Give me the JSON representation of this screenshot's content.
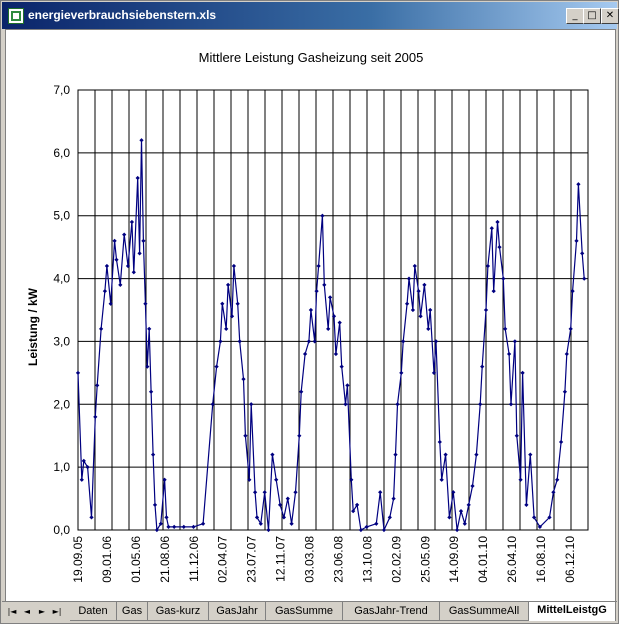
{
  "window": {
    "title": "energieverbrauchsiebenstern.xls"
  },
  "controls": {
    "minimize": "_",
    "maximize": "□",
    "close": "✕"
  },
  "chart_data": {
    "type": "line",
    "title": "Mittlere Leistung Gasheizung seit 2005",
    "xlabel": "",
    "ylabel": "Leistung / kW",
    "ylim": [
      0,
      7
    ],
    "yticks": [
      "0,0",
      "1,0",
      "2,0",
      "3,0",
      "4,0",
      "5,0",
      "6,0",
      "7,0"
    ],
    "xticks": [
      "19.09.05",
      "09.01.06",
      "01.05.06",
      "21.08.06",
      "11.12.06",
      "02.04.07",
      "23.07.07",
      "12.11.07",
      "03.03.08",
      "23.06.08",
      "13.10.08",
      "02.02.09",
      "25.05.09",
      "14.09.09",
      "04.01.10",
      "26.04.10",
      "16.08.10",
      "06.12.10"
    ],
    "grid": true,
    "series": [
      {
        "color": "#000080",
        "points": [
          [
            0,
            2.5
          ],
          [
            4,
            0.8
          ],
          [
            6,
            1.1
          ],
          [
            10,
            1.0
          ],
          [
            14,
            0.2
          ],
          [
            18,
            1.8
          ],
          [
            20,
            2.3
          ],
          [
            24,
            3.2
          ],
          [
            28,
            3.8
          ],
          [
            30,
            4.2
          ],
          [
            34,
            3.6
          ],
          [
            38,
            4.6
          ],
          [
            40,
            4.3
          ],
          [
            44,
            3.9
          ],
          [
            48,
            4.7
          ],
          [
            52,
            4.2
          ],
          [
            56,
            4.9
          ],
          [
            58,
            4.1
          ],
          [
            62,
            5.6
          ],
          [
            64,
            4.4
          ],
          [
            66,
            6.2
          ],
          [
            68,
            4.6
          ],
          [
            70,
            3.6
          ],
          [
            72,
            2.6
          ],
          [
            74,
            3.2
          ],
          [
            76,
            2.2
          ],
          [
            78,
            1.2
          ],
          [
            80,
            0.4
          ],
          [
            82,
            0.0
          ],
          [
            86,
            0.1
          ],
          [
            90,
            0.8
          ],
          [
            92,
            0.2
          ],
          [
            94,
            0.05
          ],
          [
            100,
            0.05
          ],
          [
            110,
            0.05
          ],
          [
            120,
            0.05
          ],
          [
            130,
            0.1
          ],
          [
            140,
            2.0
          ],
          [
            144,
            2.6
          ],
          [
            148,
            3.0
          ],
          [
            150,
            3.6
          ],
          [
            154,
            3.2
          ],
          [
            156,
            3.9
          ],
          [
            160,
            3.4
          ],
          [
            162,
            4.2
          ],
          [
            166,
            3.6
          ],
          [
            168,
            3.0
          ],
          [
            172,
            2.4
          ],
          [
            174,
            1.5
          ],
          [
            178,
            0.8
          ],
          [
            180,
            2.0
          ],
          [
            184,
            0.6
          ],
          [
            186,
            0.2
          ],
          [
            190,
            0.1
          ],
          [
            194,
            0.6
          ],
          [
            198,
            0.0
          ],
          [
            202,
            1.2
          ],
          [
            206,
            0.8
          ],
          [
            210,
            0.4
          ],
          [
            214,
            0.2
          ],
          [
            218,
            0.5
          ],
          [
            222,
            0.1
          ],
          [
            226,
            0.6
          ],
          [
            230,
            1.5
          ],
          [
            232,
            2.2
          ],
          [
            236,
            2.8
          ],
          [
            240,
            3.0
          ],
          [
            242,
            3.5
          ],
          [
            246,
            3.0
          ],
          [
            248,
            3.8
          ],
          [
            250,
            4.2
          ],
          [
            254,
            5.0
          ],
          [
            256,
            3.9
          ],
          [
            260,
            3.2
          ],
          [
            262,
            3.7
          ],
          [
            266,
            3.4
          ],
          [
            268,
            2.8
          ],
          [
            272,
            3.3
          ],
          [
            274,
            2.6
          ],
          [
            278,
            2.0
          ],
          [
            280,
            2.3
          ],
          [
            284,
            0.8
          ],
          [
            286,
            0.3
          ],
          [
            290,
            0.4
          ],
          [
            294,
            0.0
          ],
          [
            300,
            0.05
          ],
          [
            310,
            0.1
          ],
          [
            314,
            0.6
          ],
          [
            318,
            0.0
          ],
          [
            324,
            0.2
          ],
          [
            328,
            0.5
          ],
          [
            330,
            1.2
          ],
          [
            332,
            2.0
          ],
          [
            336,
            2.5
          ],
          [
            338,
            3.0
          ],
          [
            342,
            3.6
          ],
          [
            344,
            4.0
          ],
          [
            348,
            3.5
          ],
          [
            350,
            4.2
          ],
          [
            354,
            3.8
          ],
          [
            356,
            3.4
          ],
          [
            360,
            3.9
          ],
          [
            364,
            3.2
          ],
          [
            366,
            3.5
          ],
          [
            370,
            2.5
          ],
          [
            372,
            3.0
          ],
          [
            376,
            1.4
          ],
          [
            378,
            0.8
          ],
          [
            382,
            1.2
          ],
          [
            386,
            0.2
          ],
          [
            390,
            0.6
          ],
          [
            394,
            0.0
          ],
          [
            398,
            0.3
          ],
          [
            402,
            0.1
          ],
          [
            406,
            0.4
          ],
          [
            410,
            0.7
          ],
          [
            414,
            1.2
          ],
          [
            418,
            2.0
          ],
          [
            420,
            2.6
          ],
          [
            424,
            3.5
          ],
          [
            426,
            4.2
          ],
          [
            430,
            4.8
          ],
          [
            432,
            3.8
          ],
          [
            436,
            4.9
          ],
          [
            438,
            4.5
          ],
          [
            442,
            4.0
          ],
          [
            444,
            3.2
          ],
          [
            448,
            2.8
          ],
          [
            450,
            2.0
          ],
          [
            454,
            3.0
          ],
          [
            456,
            1.5
          ],
          [
            460,
            0.8
          ],
          [
            462,
            2.5
          ],
          [
            466,
            0.4
          ],
          [
            470,
            1.2
          ],
          [
            474,
            0.2
          ],
          [
            480,
            0.05
          ],
          [
            490,
            0.2
          ],
          [
            494,
            0.6
          ],
          [
            498,
            0.8
          ],
          [
            502,
            1.4
          ],
          [
            506,
            2.2
          ],
          [
            508,
            2.8
          ],
          [
            512,
            3.2
          ],
          [
            514,
            3.8
          ],
          [
            518,
            4.6
          ],
          [
            520,
            5.5
          ],
          [
            524,
            4.4
          ],
          [
            526,
            4.0
          ]
        ]
      }
    ]
  },
  "sheet_nav": {
    "first": "|◄",
    "prev": "◄",
    "next": "►",
    "last": "►|"
  },
  "tabs": [
    {
      "label": "Daten"
    },
    {
      "label": "Gas"
    },
    {
      "label": "Gas-kurz"
    },
    {
      "label": "GasJahr"
    },
    {
      "label": "GasSumme"
    },
    {
      "label": "GasJahr-Trend"
    },
    {
      "label": "GasSummeAll"
    },
    {
      "label": "MittelLeistgG"
    }
  ]
}
